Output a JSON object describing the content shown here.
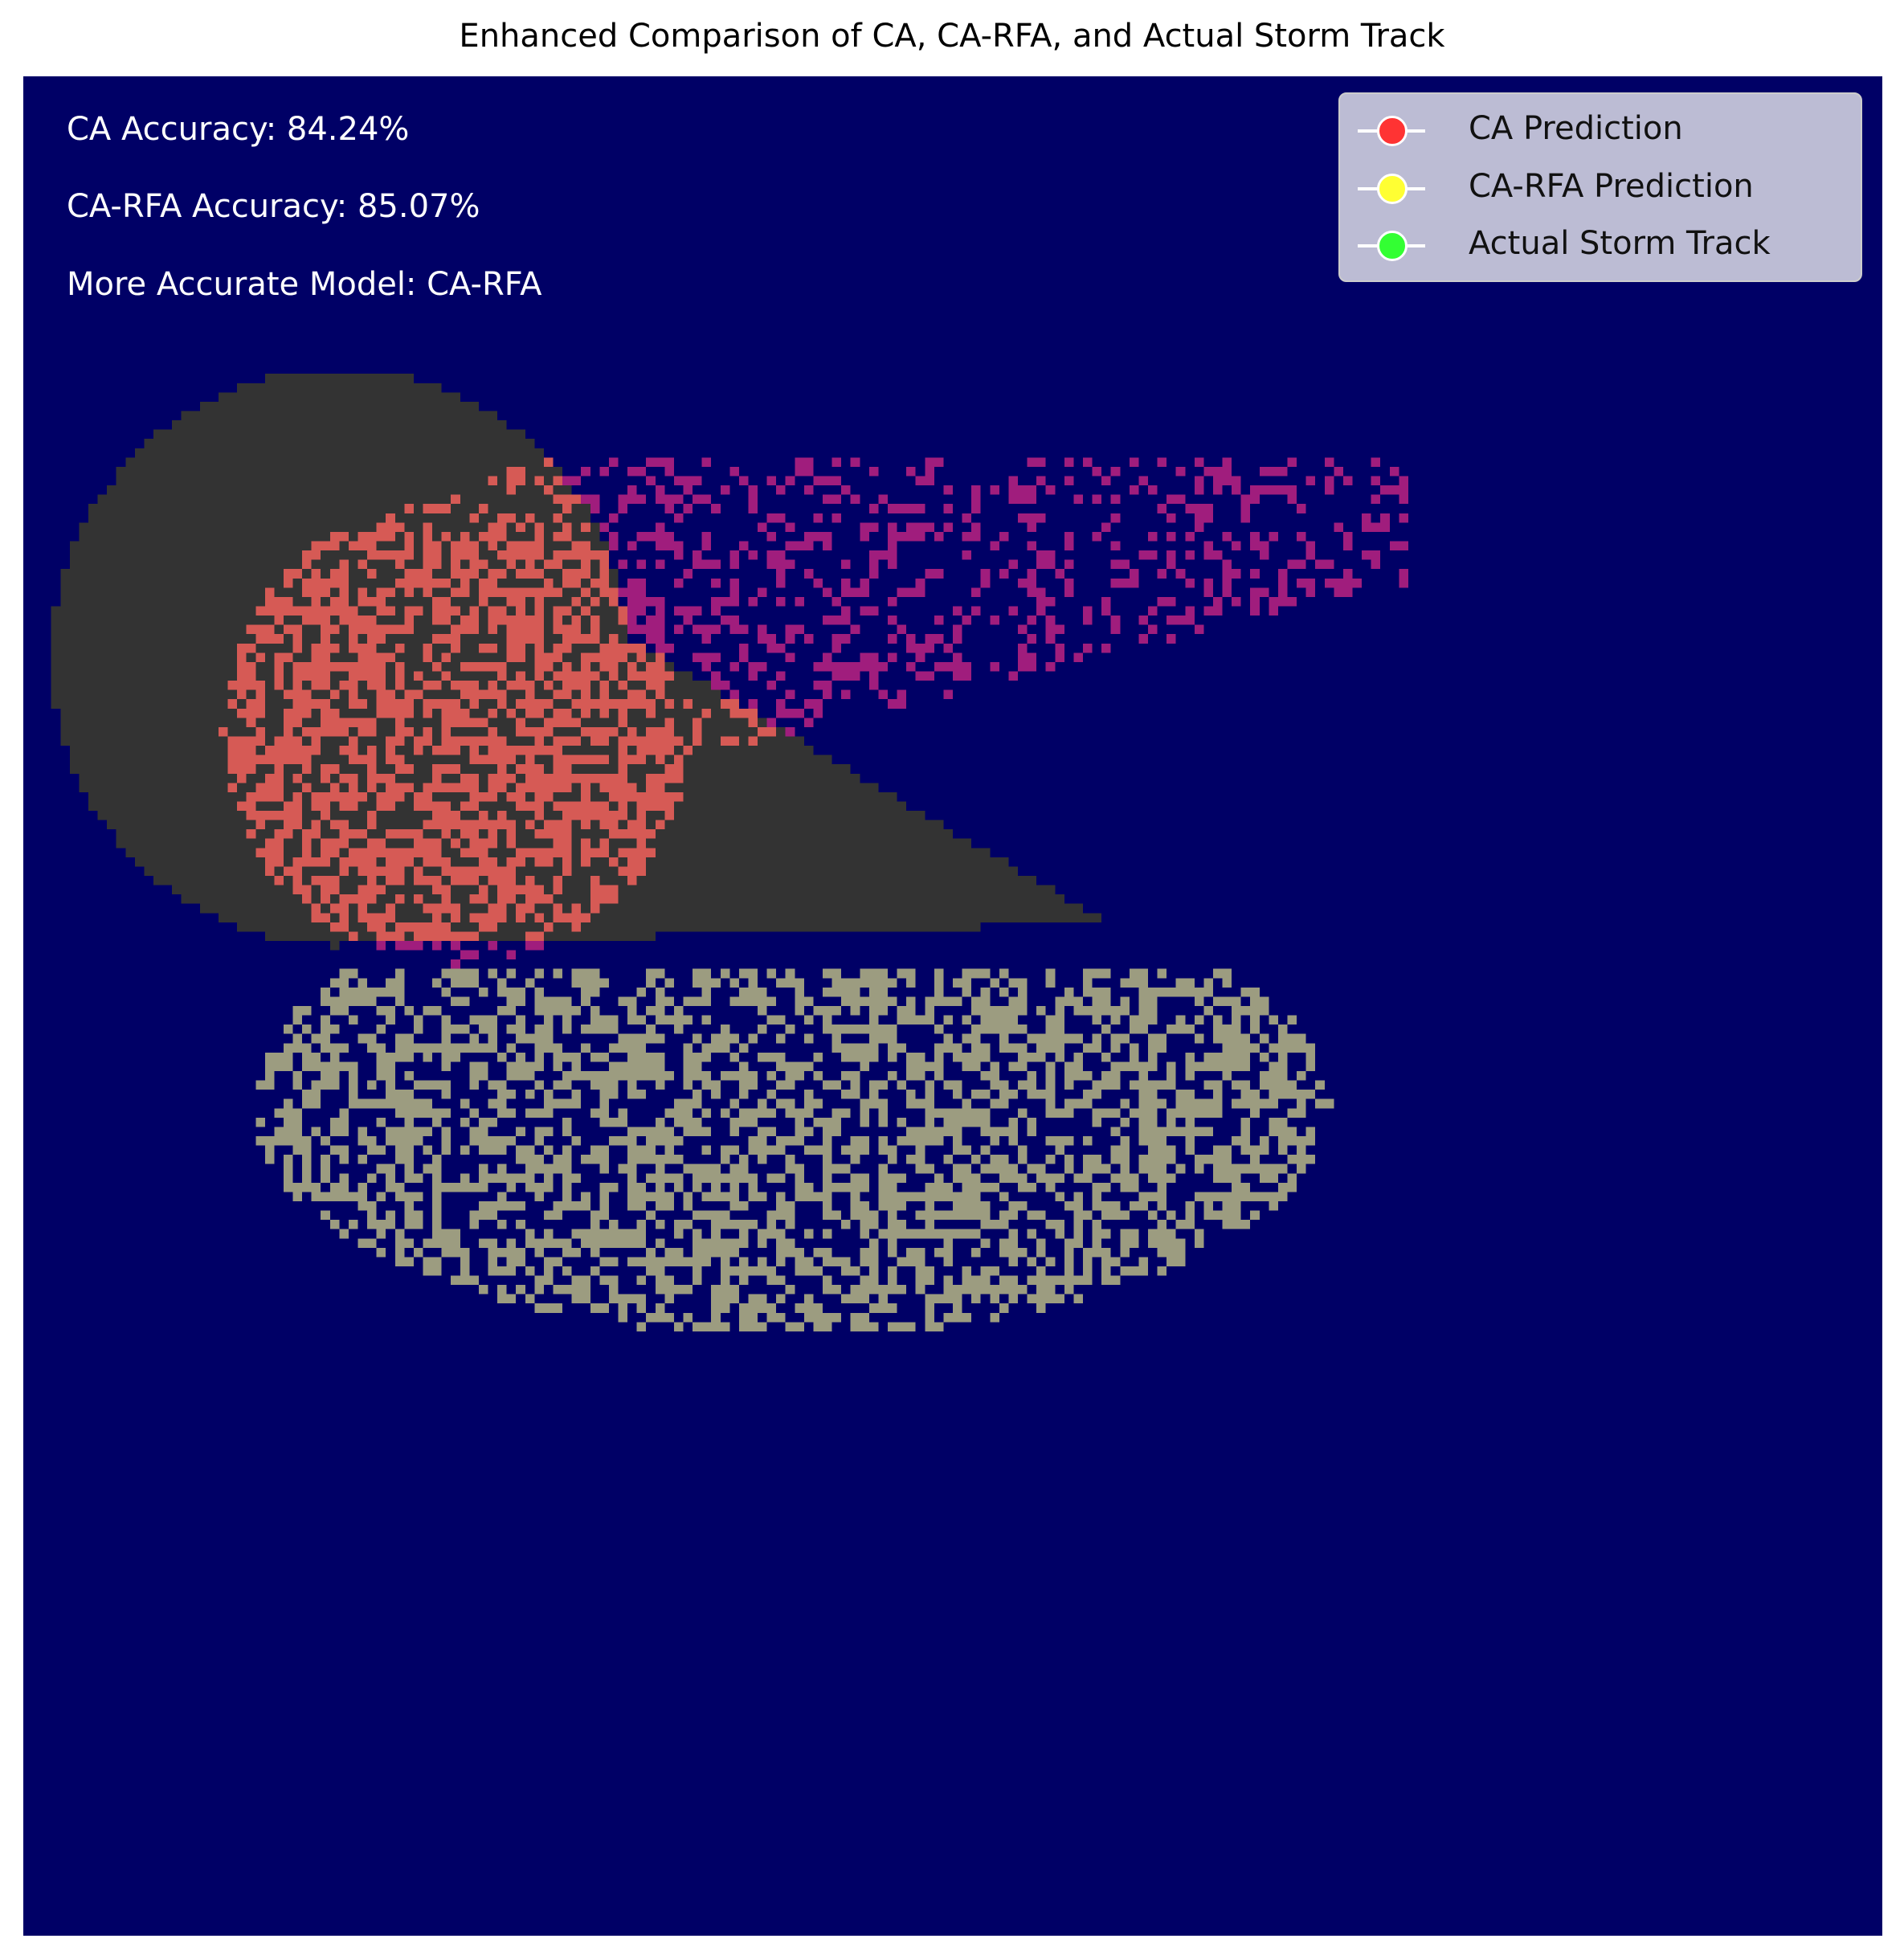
{
  "chart_data": {
    "type": "heatmap",
    "title": "Enhanced Comparison of CA, CA-RFA, and Actual Storm Track",
    "xlabel": "",
    "ylabel": "",
    "grid": false,
    "axes_visible": false,
    "grid_cells": [
      200,
      200
    ],
    "background_color": "#000066",
    "legend_placement": "top-right",
    "legend": [
      {
        "label": "CA Prediction",
        "color": "#ff3333"
      },
      {
        "label": "CA-RFA Prediction",
        "color": "#ffff33"
      },
      {
        "label": "Actual Storm Track",
        "color": "#33ff33"
      }
    ],
    "annotations": [
      "CA Accuracy: 84.24%",
      "CA-RFA Accuracy: 85.07%",
      "More Accurate Model: CA-RFA"
    ],
    "region_colors": {
      "actual_track": "#333333",
      "ca_prediction_overlap": "#d65a55",
      "ca_prediction_outside": "#a01d7d",
      "ca_rfa_prediction_overlap": "#d3d355",
      "ca_rfa_prediction_outside": "#9c9c80"
    }
  }
}
